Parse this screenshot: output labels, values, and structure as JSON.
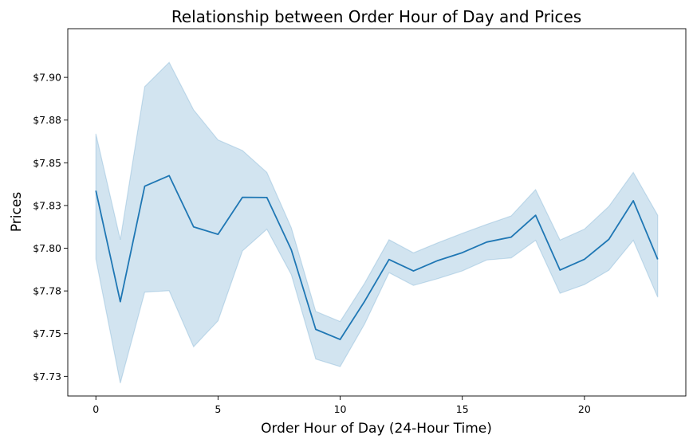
{
  "chart_data": {
    "type": "line",
    "title": "Relationship between Order Hour of Day and Prices",
    "xlabel": "Order Hour of Day (24-Hour Time)",
    "ylabel": "Prices",
    "xlim": [
      -1.15,
      24.15
    ],
    "ylim": [
      7.7135,
      7.9285
    ],
    "x_ticks": [
      0,
      5,
      10,
      15,
      20
    ],
    "x_tick_labels": [
      "0",
      "5",
      "10",
      "15",
      "20"
    ],
    "y_ticks": [
      7.725,
      7.75,
      7.775,
      7.8,
      7.825,
      7.85,
      7.875,
      7.9
    ],
    "y_tick_labels": [
      "$7.73",
      "$7.75",
      "$7.78",
      "$7.80",
      "$7.83",
      "$7.85",
      "$7.88",
      "$7.90"
    ],
    "grid": false,
    "series": [
      {
        "x": [
          0,
          1,
          2,
          3,
          4,
          5,
          6,
          7,
          8,
          9,
          10,
          11,
          12,
          13,
          14,
          15,
          16,
          17,
          18,
          19,
          20,
          21,
          22,
          23
        ],
        "values": [
          7.8337,
          7.7687,
          7.8363,
          7.8425,
          7.8125,
          7.8081,
          7.8298,
          7.8297,
          7.7991,
          7.7525,
          7.7466,
          7.7689,
          7.7934,
          7.7867,
          7.7928,
          7.7974,
          7.8036,
          7.8065,
          7.8193,
          7.7872,
          7.7935,
          7.8052,
          7.8278,
          7.7935
        ],
        "ci_lower": [
          7.7937,
          7.721,
          7.7743,
          7.7751,
          7.7423,
          7.7575,
          7.7984,
          7.8111,
          7.7845,
          7.7351,
          7.7307,
          7.7556,
          7.7857,
          7.7782,
          7.7822,
          7.7867,
          7.7931,
          7.7943,
          7.8046,
          7.7736,
          7.7787,
          7.7871,
          7.8046,
          7.7713
        ],
        "ci_upper": [
          7.867,
          7.805,
          7.8946,
          7.9088,
          7.881,
          7.8634,
          7.8572,
          7.8444,
          7.812,
          7.763,
          7.7571,
          7.7795,
          7.805,
          7.7973,
          7.8032,
          7.8087,
          7.814,
          7.8189,
          7.8343,
          7.8048,
          7.8112,
          7.8245,
          7.8444,
          7.8193
        ],
        "color": "#1f77b4",
        "band_color": "#1f77b4"
      }
    ]
  }
}
